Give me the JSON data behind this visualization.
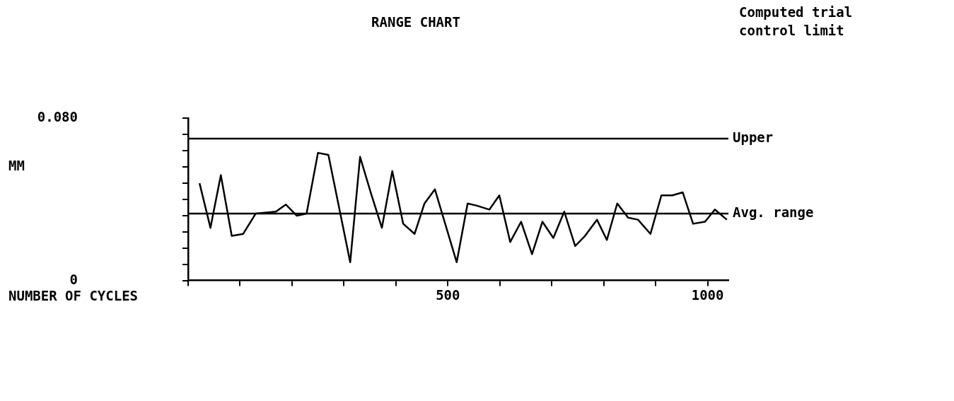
{
  "chart_data": {
    "type": "line",
    "title": "RANGE CHART",
    "annotations": [
      "Computed trial control limit",
      "MM",
      "NUMBER OF CYCLES"
    ],
    "x": [
      22,
      43,
      63,
      84,
      106,
      130,
      169,
      188,
      209,
      228,
      250,
      270,
      312,
      331,
      352,
      373,
      393,
      414,
      436,
      455,
      475,
      517,
      538,
      555,
      580,
      599,
      620,
      641,
      662,
      682,
      703,
      724,
      745,
      764,
      787,
      806,
      826,
      847,
      866,
      890,
      911,
      932,
      952,
      972,
      995,
      1014,
      1037
    ],
    "series": [
      {
        "color": "#000000",
        "values": [
          0.048,
          0.026,
          0.052,
          0.022,
          0.023,
          0.033,
          0.034,
          0.0375,
          0.032,
          0.033,
          0.063,
          0.062,
          0.009,
          0.061,
          0.043,
          0.026,
          0.054,
          0.028,
          0.023,
          0.038,
          0.045,
          0.009,
          0.038,
          0.037,
          0.035,
          0.042,
          0.019,
          0.029,
          0.013,
          0.029,
          0.021,
          0.034,
          0.017,
          0.022,
          0.03,
          0.02,
          0.038,
          0.031,
          0.03,
          0.023,
          0.042,
          0.042,
          0.0435,
          0.028,
          0.029,
          0.035,
          0.03
        ]
      }
    ],
    "xlim": [
      0,
      1040
    ],
    "xticks": [
      {
        "value": 0,
        "label": null
      },
      {
        "value": 100,
        "label": null
      },
      {
        "value": 200,
        "label": null
      },
      {
        "value": 300,
        "label": null
      },
      {
        "value": 400,
        "label": null
      },
      500,
      {
        "value": 600,
        "label": null
      },
      {
        "value": 700,
        "label": null
      },
      {
        "value": 800,
        "label": null
      },
      {
        "value": 900,
        "label": null
      },
      1000
    ],
    "ylim": [
      0,
      0.08
    ],
    "yticks": [
      0,
      {
        "value": 0.008,
        "label": null
      },
      {
        "value": 0.016,
        "label": null
      },
      {
        "value": 0.024,
        "label": null
      },
      {
        "value": 0.032,
        "label": null
      },
      {
        "value": 0.04,
        "label": null
      },
      {
        "value": 0.048,
        "label": null
      },
      {
        "value": 0.056,
        "label": null
      },
      {
        "value": 0.064,
        "label": null
      },
      {
        "value": 0.072,
        "label": null
      },
      {
        "value": 0.08,
        "label": "0.080"
      }
    ],
    "ref_lines": [
      {
        "axis": "y",
        "value": 0.07,
        "label": "Upper"
      },
      {
        "axis": "y",
        "value": 0.033,
        "label": "Avg. range"
      }
    ],
    "grid": false,
    "legend": false,
    "marker": "none",
    "line_style": "solid"
  }
}
